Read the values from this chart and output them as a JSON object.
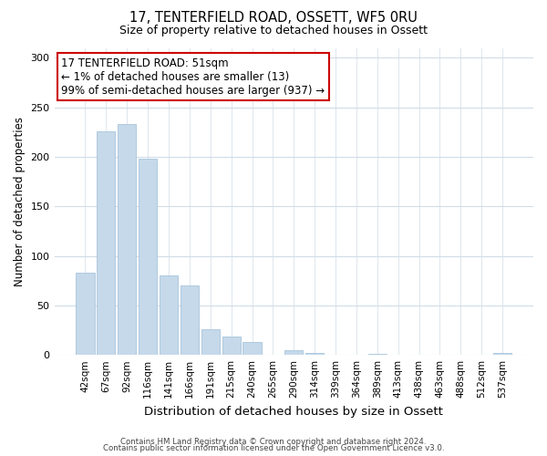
{
  "title1": "17, TENTERFIELD ROAD, OSSETT, WF5 0RU",
  "title2": "Size of property relative to detached houses in Ossett",
  "xlabel": "Distribution of detached houses by size in Ossett",
  "ylabel": "Number of detached properties",
  "bar_labels": [
    "42sqm",
    "67sqm",
    "92sqm",
    "116sqm",
    "141sqm",
    "166sqm",
    "191sqm",
    "215sqm",
    "240sqm",
    "265sqm",
    "290sqm",
    "314sqm",
    "339sqm",
    "364sqm",
    "389sqm",
    "413sqm",
    "438sqm",
    "463sqm",
    "488sqm",
    "512sqm",
    "537sqm"
  ],
  "bar_values": [
    83,
    226,
    233,
    198,
    80,
    70,
    26,
    19,
    13,
    0,
    5,
    2,
    0,
    0,
    1,
    0,
    0,
    0,
    0,
    0,
    2
  ],
  "bar_color": "#c5d9ea",
  "bar_edge_color": "#a8c4dc",
  "annotation_line1": "17 TENTERFIELD ROAD: 51sqm",
  "annotation_line2": "← 1% of detached houses are smaller (13)",
  "annotation_line3": "99% of semi-detached houses are larger (937) →",
  "annotation_box_facecolor": "#ffffff",
  "annotation_box_edgecolor": "#cc0000",
  "ylim": [
    0,
    310
  ],
  "yticks": [
    0,
    50,
    100,
    150,
    200,
    250,
    300
  ],
  "footer1": "Contains HM Land Registry data © Crown copyright and database right 2024.",
  "footer2": "Contains public sector information licensed under the Open Government Licence v3.0.",
  "background_color": "#ffffff",
  "grid_color": "#d0dce8",
  "title1_fontsize": 10.5,
  "title2_fontsize": 9,
  "ylabel_fontsize": 8.5,
  "xlabel_fontsize": 9.5,
  "tick_fontsize": 7.5,
  "annot_fontsize": 8.5,
  "footer_fontsize": 6.2
}
